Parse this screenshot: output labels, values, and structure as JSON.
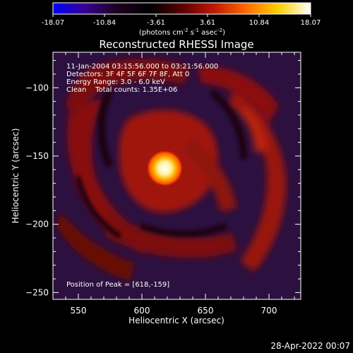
{
  "colorbar": {
    "ticks": [
      "-18.07",
      "-10.84",
      "-3.61",
      "3.61",
      "10.84",
      "18.07"
    ],
    "range": [
      -18.07,
      18.07
    ],
    "unit_label_parts": {
      "a": "(photons cm",
      "a_sup": "-2",
      "b": " s",
      "b_sup": "-1",
      "c": " asec",
      "c_sup": "-2",
      "d": ")"
    },
    "colormap": "red-blue",
    "colors": [
      "#0000ff",
      "#3a0090",
      "#1c0020",
      "#000000",
      "#5a0000",
      "#c01800",
      "#ff6a00",
      "#ffd000",
      "#ffffff"
    ]
  },
  "chart_data": {
    "type": "heatmap",
    "title": "Reconstructed RHESSI Image",
    "xlabel": "Heliocentric X (arcsec)",
    "ylabel": "Heliocentric Y (arcsec)",
    "xlim": [
      530,
      725
    ],
    "ylim": [
      -255,
      -74
    ],
    "xticks": [
      550,
      600,
      650,
      700
    ],
    "yticks": [
      -100,
      -150,
      -200,
      -250
    ],
    "source": {
      "x": 618,
      "y": -159,
      "value": 18.07
    },
    "info_lines": [
      "11-Jan-2004 03:15:56.000 to 03:21:56.000",
      "Detectors: 3F 4F 5F 6F 7F 8F, Att 0",
      "Energy Range: 3.0 - 6.0 keV",
      "Clean    Total counts: 1.35E+06"
    ],
    "peak_text": "Position of Peak = [618,-159]",
    "colors": {
      "background_purple": "#2b1040",
      "red_lobe": "#8a0c0a",
      "red_lobe_bright": "#a81810",
      "peak": "#ffffff"
    }
  },
  "footer": {
    "timestamp": "28-Apr-2022 00:07"
  }
}
